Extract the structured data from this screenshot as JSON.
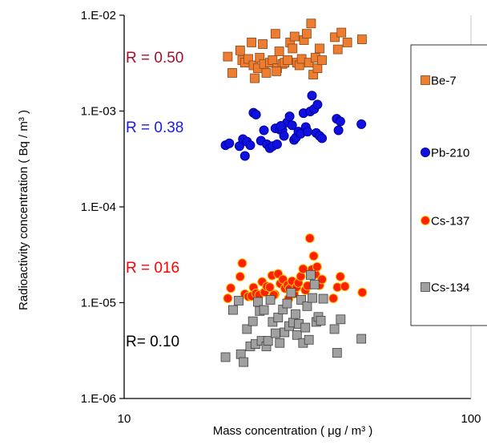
{
  "chart_data": {
    "type": "scatter",
    "xlabel": "Mass concentration ( μg / m³ )",
    "ylabel": "Radioactivity concentration ( Bq / m³ )",
    "x_scale": "log",
    "y_scale": "log",
    "xlim": [
      10,
      100
    ],
    "ylim": [
      1e-06,
      0.01
    ],
    "x_ticks": [
      "10",
      "100"
    ],
    "y_ticks": [
      "1.E-06",
      "1.E-05",
      "1.E-04",
      "1.E-03",
      "1.E-02"
    ],
    "grid": false,
    "legend_position": "right",
    "series": [
      {
        "name": "Be-7",
        "marker": "square",
        "fill": "#ED7D31",
        "stroke": "#8B4513",
        "correlation_label": "R = 0.50",
        "label_color": "#A0102A",
        "points": [
          [
            19.9,
            0.0037
          ],
          [
            20.5,
            0.0025
          ],
          [
            21.6,
            0.0043
          ],
          [
            21.9,
            0.0034
          ],
          [
            22.3,
            0.0032
          ],
          [
            22.8,
            0.0035
          ],
          [
            23.3,
            0.0052
          ],
          [
            23.6,
            0.003
          ],
          [
            23.8,
            0.0022
          ],
          [
            24.3,
            0.0028
          ],
          [
            24.6,
            0.0036
          ],
          [
            25.1,
            0.005
          ],
          [
            25.3,
            0.0031
          ],
          [
            25.7,
            0.0025
          ],
          [
            26.3,
            0.0032
          ],
          [
            26.8,
            0.0034
          ],
          [
            27.3,
            0.0064
          ],
          [
            27.6,
            0.0028
          ],
          [
            28.0,
            0.0042
          ],
          [
            28.6,
            0.0031
          ],
          [
            29.0,
            0.0032
          ],
          [
            29.6,
            0.0034
          ],
          [
            30.1,
            0.0052
          ],
          [
            30.6,
            0.0045
          ],
          [
            31.0,
            0.006
          ],
          [
            31.5,
            0.0032
          ],
          [
            32.0,
            0.003
          ],
          [
            32.5,
            0.0035
          ],
          [
            33.0,
            0.0055
          ],
          [
            33.6,
            0.0064
          ],
          [
            34.1,
            0.0032
          ],
          [
            34.6,
            0.0082
          ],
          [
            35.1,
            0.0024
          ],
          [
            35.6,
            0.0036
          ],
          [
            36.1,
            0.0028
          ],
          [
            36.6,
            0.0045
          ],
          [
            37.2,
            0.0034
          ],
          [
            40.5,
            0.0059
          ],
          [
            41.3,
            0.0044
          ],
          [
            42.3,
            0.0066
          ],
          [
            48.5,
            0.0056
          ],
          [
            44.0,
            0.0052
          ],
          [
            27.5,
            0.0026
          ]
        ]
      },
      {
        "name": "Pb-210",
        "marker": "circle",
        "fill": "#1010E0",
        "stroke": "#0000A0",
        "correlation_label": "R = 0.38",
        "label_color": "#1A1AE6",
        "points": [
          [
            19.6,
            0.00044
          ],
          [
            20.1,
            0.00046
          ],
          [
            21.5,
            0.00043
          ],
          [
            22.0,
            0.00051
          ],
          [
            22.3,
            0.00034
          ],
          [
            22.6,
            0.00048
          ],
          [
            23.1,
            0.00044
          ],
          [
            23.6,
            0.00096
          ],
          [
            24.0,
            0.00092
          ],
          [
            24.8,
            0.00049
          ],
          [
            25.3,
            0.00063
          ],
          [
            25.8,
            0.00045
          ],
          [
            26.3,
            0.00041
          ],
          [
            26.8,
            0.00043
          ],
          [
            27.3,
            0.00066
          ],
          [
            27.6,
            0.00045
          ],
          [
            28.1,
            0.00064
          ],
          [
            28.6,
            0.00063
          ],
          [
            28.9,
            0.00055
          ],
          [
            29.5,
            0.00076
          ],
          [
            30.0,
            0.00088
          ],
          [
            30.5,
            0.00071
          ],
          [
            30.9,
            0.0005
          ],
          [
            31.3,
            0.00053
          ],
          [
            31.8,
            0.00061
          ],
          [
            32.3,
            0.00058
          ],
          [
            32.9,
            0.00095
          ],
          [
            33.4,
            0.00068
          ],
          [
            33.8,
            0.00061
          ],
          [
            34.4,
            0.00099
          ],
          [
            34.8,
            0.00145
          ],
          [
            35.3,
            0.00105
          ],
          [
            35.8,
            0.00059
          ],
          [
            36.1,
            0.00117
          ],
          [
            36.6,
            0.00055
          ],
          [
            37.2,
            0.00052
          ],
          [
            41.0,
            0.00083
          ],
          [
            42.0,
            0.00078
          ],
          [
            41.5,
            0.00063
          ],
          [
            48.3,
            0.00073
          ],
          [
            28.3,
            0.0007
          ]
        ]
      },
      {
        "name": "Cs-137",
        "marker": "circle",
        "fill": "#FF2000",
        "stroke": "#FFC000",
        "correlation_label": "R = 016",
        "label_color": "#FF0000",
        "points": [
          [
            19.9,
            1.11e-05
          ],
          [
            20.3,
            1.42e-05
          ],
          [
            21.6,
            1.87e-05
          ],
          [
            21.9,
            2.58e-05
          ],
          [
            22.3,
            1.23e-05
          ],
          [
            22.8,
            1.16e-05
          ],
          [
            23.3,
            1.17e-05
          ],
          [
            23.6,
            1.44e-05
          ],
          [
            24.0,
            1.25e-05
          ],
          [
            24.5,
            1.2e-05
          ],
          [
            25.0,
            1.65e-05
          ],
          [
            25.4,
            1.29e-05
          ],
          [
            25.8,
            1.48e-05
          ],
          [
            26.3,
            1.45e-05
          ],
          [
            26.7,
            1.92e-05
          ],
          [
            27.2,
            1.22e-05
          ],
          [
            27.8,
            2e-05
          ],
          [
            28.2,
            1.58e-05
          ],
          [
            28.7,
            1.75e-05
          ],
          [
            29.1,
            1.41e-05
          ],
          [
            29.6,
            1.53e-05
          ],
          [
            30.0,
            1.4e-05
          ],
          [
            30.5,
            1.68e-05
          ],
          [
            30.9,
            1.24e-05
          ],
          [
            31.4,
            1.45e-05
          ],
          [
            31.8,
            1.61e-05
          ],
          [
            32.3,
            1.88e-05
          ],
          [
            32.8,
            2.25e-05
          ],
          [
            33.3,
            1.35e-05
          ],
          [
            33.8,
            1.5e-05
          ],
          [
            34.3,
            4.7e-05
          ],
          [
            34.8,
            2.22e-05
          ],
          [
            35.2,
            3.07e-05
          ],
          [
            35.6,
            1.98e-05
          ],
          [
            36.0,
            2.37e-05
          ],
          [
            36.6,
            1.52e-05
          ],
          [
            37.2,
            1.75e-05
          ],
          [
            40.1,
            1.11e-05
          ],
          [
            41.2,
            1.45e-05
          ],
          [
            42.0,
            1.87e-05
          ],
          [
            43.3,
            1.48e-05
          ],
          [
            48.6,
            1.28e-05
          ],
          [
            29.8,
            1.1e-05
          ],
          [
            27.0,
            1.2e-05
          ]
        ]
      },
      {
        "name": "Cs-134",
        "marker": "square",
        "fill": "#A0A0A0",
        "stroke": "#404040",
        "correlation_label": "R= 0.10",
        "label_color": "#000000",
        "points": [
          [
            19.6,
            2.7e-06
          ],
          [
            20.6,
            8.4e-06
          ],
          [
            21.4,
            1.05e-05
          ],
          [
            21.7,
            2.9e-06
          ],
          [
            22.1,
            2.4e-06
          ],
          [
            22.6,
            5.3e-06
          ],
          [
            23.1,
            3.5e-06
          ],
          [
            23.5,
            6.4e-06
          ],
          [
            23.9,
            3.7e-06
          ],
          [
            24.3,
            1.02e-05
          ],
          [
            24.6,
            8.2e-06
          ],
          [
            24.9,
            4e-06
          ],
          [
            25.3,
            8.4e-06
          ],
          [
            25.7,
            3.5e-06
          ],
          [
            26.0,
            4e-06
          ],
          [
            26.4,
            1.07e-05
          ],
          [
            26.8,
            6.3e-06
          ],
          [
            27.3,
            4.8e-06
          ],
          [
            27.8,
            7e-06
          ],
          [
            28.1,
            3.8e-06
          ],
          [
            28.7,
            8.5e-06
          ],
          [
            29.0,
            4.9e-06
          ],
          [
            29.5,
            9.8e-06
          ],
          [
            29.9,
            5.7e-06
          ],
          [
            30.3,
            1.27e-05
          ],
          [
            30.7,
            6.2e-06
          ],
          [
            31.2,
            7.6e-06
          ],
          [
            31.5,
            4.6e-06
          ],
          [
            31.9,
            6e-06
          ],
          [
            32.4,
            1.07e-05
          ],
          [
            32.8,
            3.8e-06
          ],
          [
            33.3,
            5.5e-06
          ],
          [
            33.7,
            9.2e-06
          ],
          [
            34.1,
            4.1e-06
          ],
          [
            34.5,
            1.95e-05
          ],
          [
            34.9,
            1.12e-05
          ],
          [
            35.4,
            1.55e-05
          ],
          [
            35.8,
            6.3e-06
          ],
          [
            36.3,
            7.1e-06
          ],
          [
            36.9,
            6.5e-06
          ],
          [
            40.4,
            5.3e-06
          ],
          [
            41.1,
            3e-06
          ],
          [
            42.1,
            6.7e-06
          ],
          [
            48.3,
            4.2e-06
          ],
          [
            37.5,
            1.1e-05
          ]
        ]
      }
    ]
  }
}
